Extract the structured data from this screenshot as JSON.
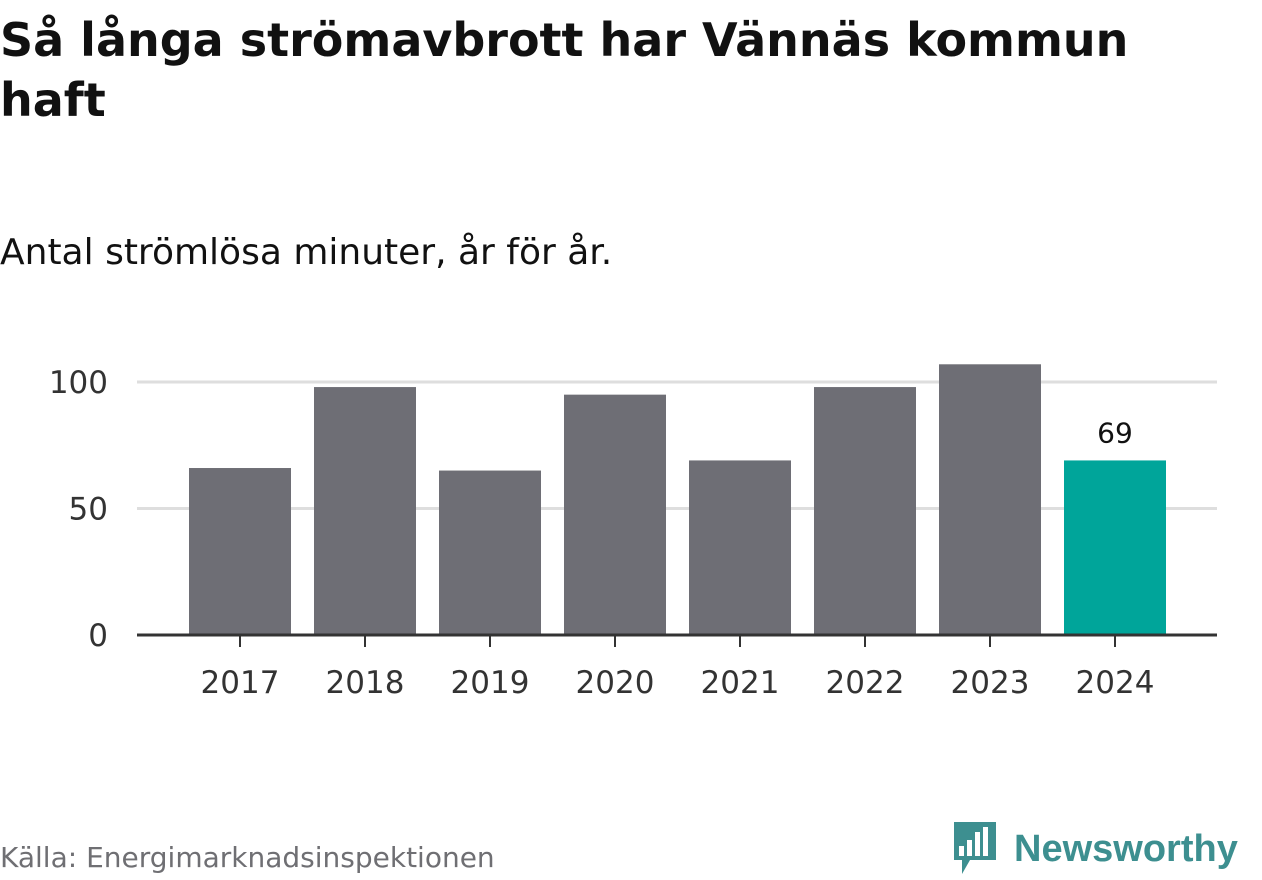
{
  "title": "Så långa strömavbrott har Vännäs kommun haft",
  "subtitle": "Antal strömlösa minuter, år för år.",
  "source": "Källa: Energimarknadsinspektionen",
  "brand": {
    "name": "Newsworthy",
    "icon": "bar-chart-speech-bubble-icon",
    "color": "#3d8f90"
  },
  "chart_data": {
    "type": "bar",
    "categories": [
      "2017",
      "2018",
      "2019",
      "2020",
      "2021",
      "2022",
      "2023",
      "2024"
    ],
    "values": [
      66,
      98,
      65,
      95,
      69,
      98,
      107,
      69
    ],
    "ylim": [
      0,
      110
    ],
    "yticks": [
      0,
      50,
      100
    ],
    "grid": true,
    "highlight_index": 7,
    "data_labels": {
      "2024": "69"
    },
    "colors": {
      "default": "#6e6e75",
      "highlight": "#00a59a",
      "grid": "#dedede",
      "axis": "#333333"
    }
  }
}
